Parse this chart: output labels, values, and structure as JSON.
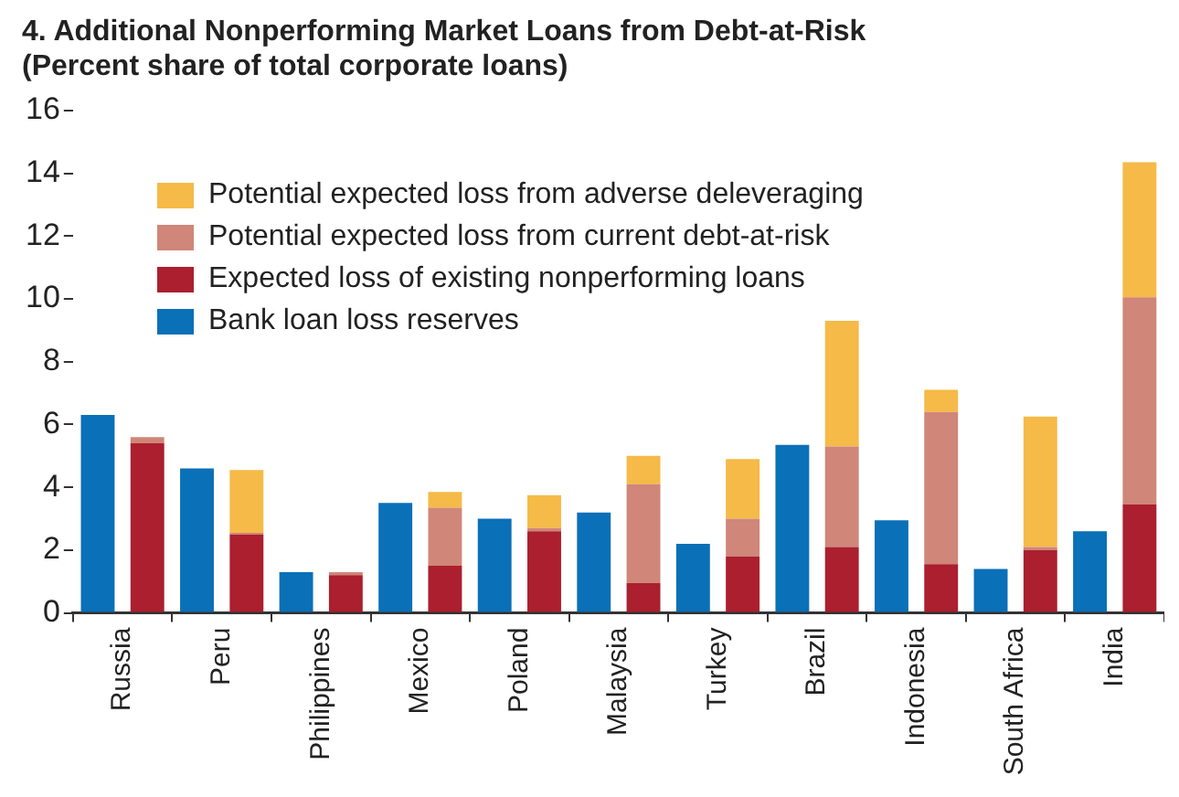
{
  "chart_data": {
    "type": "bar",
    "title": "4. Additional Nonperforming Market Loans from Debt-at-Risk\n(Percent share of total corporate loans)",
    "categories": [
      "Russia",
      "Peru",
      "Philippines",
      "Mexico",
      "Poland",
      "Malaysia",
      "Turkey",
      "Brazil",
      "Indonesia",
      "South Africa",
      "India"
    ],
    "ylim": [
      0,
      16
    ],
    "yticks": [
      0,
      2,
      4,
      6,
      8,
      10,
      12,
      14,
      16
    ],
    "grid": false,
    "legend": "top left",
    "series": [
      {
        "name": "Bank loan loss reserves",
        "color": "#0a70b8",
        "values": [
          6.3,
          4.6,
          1.3,
          3.5,
          3.0,
          3.2,
          2.2,
          5.35,
          2.95,
          1.4,
          2.6
        ]
      },
      {
        "name": "Expected loss of existing nonperforming loans",
        "color": "#ab1f2e",
        "base": [
          0,
          0,
          0,
          0,
          0,
          0,
          0,
          0,
          0,
          0,
          0
        ],
        "values": [
          5.4,
          2.5,
          1.2,
          1.5,
          2.6,
          0.95,
          1.8,
          2.1,
          1.55,
          2.0,
          3.45
        ]
      },
      {
        "name": "Potential expected loss from current debt-at-risk",
        "color": "#d08678",
        "base": [
          5.4,
          2.5,
          1.2,
          1.5,
          2.6,
          0.95,
          1.8,
          2.1,
          1.55,
          2.0,
          3.45
        ],
        "values": [
          0.2,
          0.05,
          0.1,
          1.85,
          0.1,
          3.15,
          1.2,
          3.2,
          4.85,
          0.1,
          6.6
        ]
      },
      {
        "name": "Potential expected loss from adverse deleveraging",
        "color": "#f5ba47",
        "base": [
          null,
          2.55,
          null,
          3.35,
          2.7,
          4.1,
          3.0,
          5.3,
          6.4,
          2.1,
          10.05
        ],
        "values": [
          null,
          2.0,
          null,
          0.5,
          1.05,
          0.9,
          1.9,
          4.0,
          0.7,
          4.15,
          4.3
        ]
      }
    ]
  }
}
